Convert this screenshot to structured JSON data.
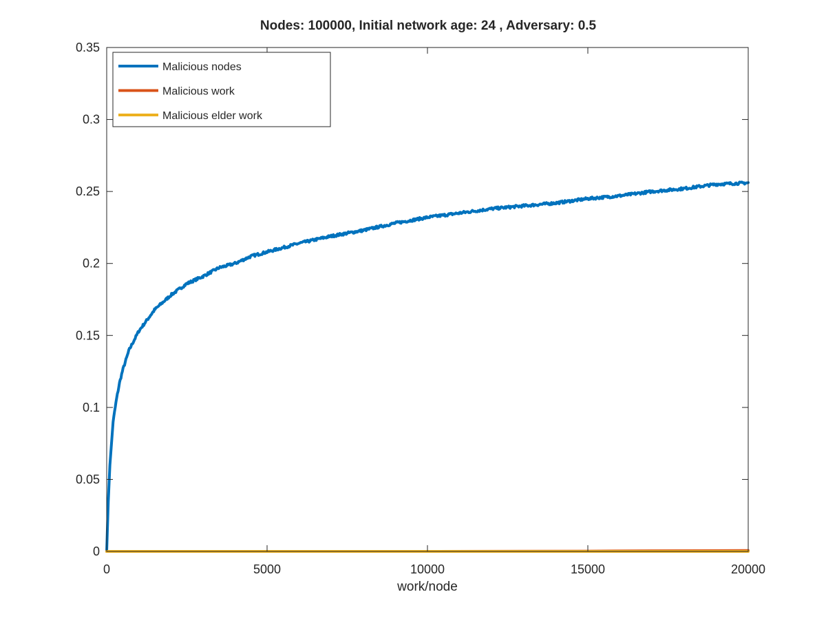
{
  "colors": {
    "background": "#ffffff",
    "axis": "#262626",
    "malicious_nodes": "#0072BD",
    "malicious_work": "#D95319",
    "malicious_elder_work": "#EDB120"
  },
  "chart_data": {
    "type": "line",
    "title": "Nodes: 100000, Initial network age: 24 , Adversary: 0.5",
    "xlabel": "work/node",
    "ylabel": "",
    "xlim": [
      0,
      20000
    ],
    "ylim": [
      0,
      0.35
    ],
    "xticks": [
      0,
      5000,
      10000,
      15000,
      20000
    ],
    "xtick_labels": [
      "0",
      "5000",
      "10000",
      "15000",
      "20000"
    ],
    "yticks": [
      0,
      0.05,
      0.1,
      0.15,
      0.2,
      0.25,
      0.3,
      0.35
    ],
    "ytick_labels": [
      "0",
      "0.05",
      "0.1",
      "0.15",
      "0.2",
      "0.25",
      "0.3",
      "0.35"
    ],
    "grid": false,
    "box": true,
    "legend_position": "top-left",
    "series": [
      {
        "name": "Malicious nodes",
        "color": "#0072BD",
        "x": [
          0,
          50,
          100,
          200,
          300,
          400,
          500,
          700,
          1000,
          1500,
          2000,
          2500,
          3000,
          3500,
          4000,
          4500,
          5000,
          6000,
          7000,
          8000,
          9000,
          10000,
          11000,
          12000,
          13000,
          14000,
          15000,
          16000,
          17000,
          18000,
          19000,
          20000
        ],
        "y": [
          0,
          0.035,
          0.06,
          0.09,
          0.105,
          0.117,
          0.126,
          0.14,
          0.153,
          0.168,
          0.178,
          0.186,
          0.191,
          0.197,
          0.2,
          0.205,
          0.208,
          0.214,
          0.219,
          0.223,
          0.228,
          0.232,
          0.235,
          0.238,
          0.24,
          0.242,
          0.245,
          0.247,
          0.25,
          0.252,
          0.255,
          0.256
        ]
      },
      {
        "name": "Malicious work",
        "color": "#D95319",
        "x": [
          0,
          5000,
          10000,
          15000,
          17000,
          20000
        ],
        "y": [
          0,
          0,
          0,
          0.0002,
          0.0004,
          0.0006
        ]
      },
      {
        "name": "Malicious elder work",
        "color": "#EDB120",
        "x": [
          0,
          5000,
          10000,
          15000,
          20000
        ],
        "y": [
          0,
          0,
          0,
          0,
          0
        ]
      }
    ]
  }
}
